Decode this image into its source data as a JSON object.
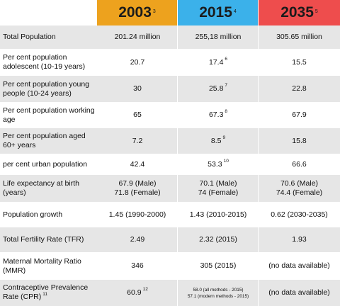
{
  "headers": [
    {
      "year": "2003",
      "note": "3",
      "color": "#eda21e"
    },
    {
      "year": "2015",
      "note": "4",
      "color": "#3bb1ea"
    },
    {
      "year": "2035",
      "note": "5",
      "color": "#ee4d4d"
    }
  ],
  "rows": [
    {
      "label": "Total Population",
      "v2003": "201.24 million",
      "v2015": "255,18 million",
      "v2035": "305.65 million"
    },
    {
      "label": "Per cent population adolescent (10-19 years)",
      "v2003": "20.7",
      "v2015": "17.4",
      "n2015": "6",
      "v2035": "15.5"
    },
    {
      "label": "Per cent population young people (10-24 years)",
      "v2003": "30",
      "v2015": "25.8",
      "n2015": "7",
      "v2035": "22.8"
    },
    {
      "label": "Per cent population working age",
      "v2003": "65",
      "v2015": "67.3",
      "n2015": "8",
      "v2035": "67.9"
    },
    {
      "label": "Per cent population aged 60+ years",
      "v2003": "7.2",
      "v2015": "8.5",
      "n2015": "9",
      "v2035": "15.8"
    },
    {
      "label": "per cent urban population",
      "v2003": "42.4",
      "v2015": "53.3",
      "n2015": "10",
      "v2035": "66.6"
    },
    {
      "label": "Life expectancy at birth (years)",
      "v2003a": "67.9 (Male)",
      "v2003b": "71.8 (Female)",
      "v2015a": "70.1 (Male)",
      "v2015b": "74 (Female)",
      "v2035a": "70.6 (Male)",
      "v2035b": "74.4 (Female)"
    },
    {
      "label": "Population growth",
      "v2003": "1.45 (1990-2000)",
      "v2015": "1.43 (2010-2015)",
      "v2035": "0.62 (2030-2035)"
    },
    {
      "label": "Total Fertility Rate (TFR)",
      "v2003": "2.49",
      "v2015": "2.32 (2015)",
      "v2035": "1.93"
    },
    {
      "label": "Maternal Mortality Ratio (MMR)",
      "v2003": "346",
      "v2015": "305 (2015)",
      "v2035": "(no data available)"
    },
    {
      "label": "Contraceptive Prevalence Rate (CPR)",
      "labelNote": "11",
      "v2003": "60.9",
      "n2003": "12",
      "v2015a": "58.0 (all methods - 2015)",
      "v2015b": "57.1 (modern methods - 2015)",
      "v2035": "(no data available)"
    }
  ]
}
